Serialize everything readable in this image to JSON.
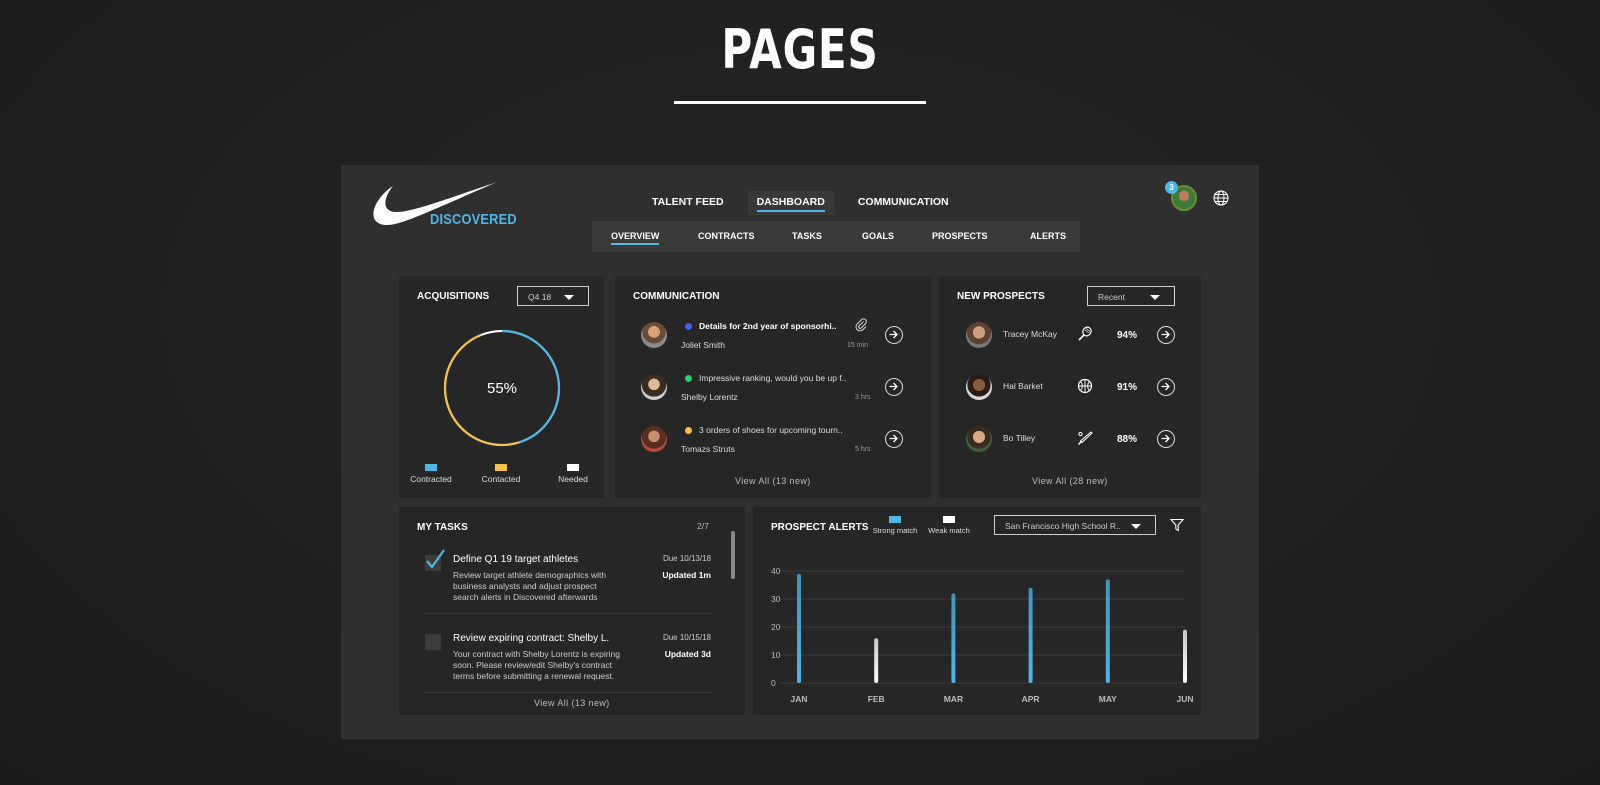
{
  "page_heading": "PAGES",
  "brand": {
    "name": "DISCOVERED"
  },
  "main_nav": [
    {
      "label": "TALENT FEED",
      "active": false
    },
    {
      "label": "DASHBOARD",
      "active": true
    },
    {
      "label": "COMMUNICATION",
      "active": false
    }
  ],
  "sub_nav": [
    {
      "label": "OVERVIEW",
      "active": true
    },
    {
      "label": "CONTRACTS",
      "active": false
    },
    {
      "label": "TASKS",
      "active": false
    },
    {
      "label": "GOALS",
      "active": false
    },
    {
      "label": "PROSPECTS",
      "active": false
    },
    {
      "label": "ALERTS",
      "active": false
    }
  ],
  "header": {
    "notification_count": "3",
    "avatar_icon": "user-avatar",
    "globe_icon": "globe-icon"
  },
  "acquisitions": {
    "title": "ACQUISITIONS",
    "period": "Q4 18",
    "percent_label": "55%",
    "contracted_fraction": 0.55,
    "legend": [
      {
        "label": "Contracted",
        "color": "#4fb6e6"
      },
      {
        "label": "Contacted",
        "color": "#f2c14e"
      },
      {
        "label": "Needed",
        "color": "#ffffff"
      }
    ]
  },
  "communication": {
    "title": "COMMUNICATION",
    "messages": [
      {
        "subject": "Details for 2nd year of sponsorhi..",
        "name": "Joliet Smith",
        "time": "15 min",
        "dot_color": "#4a5fe0",
        "bold": true,
        "attachment": true
      },
      {
        "subject": "Impressive ranking, would you be up f..",
        "name": "Shelby Lorentz",
        "time": "3 hrs",
        "dot_color": "#2ecc71",
        "bold": false,
        "attachment": false
      },
      {
        "subject": "3 orders of shoes for upcoming tourn..",
        "name": "Tomazs Struts",
        "time": "5 hrs",
        "dot_color": "#f2c14e",
        "bold": false,
        "attachment": false
      }
    ],
    "view_all": "View All (13 new)"
  },
  "new_prospects": {
    "title": "NEW PROSPECTS",
    "filter": "Recent",
    "prospects": [
      {
        "name": "Tracey McKay",
        "sport_icon": "tennis-racket-icon",
        "match": "94%"
      },
      {
        "name": "Hal Barket",
        "sport_icon": "basketball-icon",
        "match": "91%"
      },
      {
        "name": "Bo Tilley",
        "sport_icon": "baseball-bat-icon",
        "match": "88%"
      }
    ],
    "view_all": "View All (28 new)"
  },
  "my_tasks": {
    "title": "MY TASKS",
    "count": "2/7",
    "tasks": [
      {
        "title": "Define Q1 19 target athletes",
        "desc": "Review target athlete demographics with business analysts and adjust prospect search alerts in Discovered afterwards",
        "due": "Due 10/13/18",
        "updated": "Updated 1m",
        "done": true
      },
      {
        "title": "Review expiring contract: Shelby L.",
        "desc": "Your contract with Shelby Lorentz is expiring soon. Please review/edit Shelby's contract terms before submitting a renewal request.",
        "due": "Due 10/15/18",
        "updated": "Updated 3d",
        "done": false
      }
    ],
    "view_all": "View All (13 new)"
  },
  "prospect_alerts": {
    "title": "PROSPECT ALERTS",
    "legend": [
      {
        "label": "Strong match",
        "color": "#4fb6e6"
      },
      {
        "label": "Weak match",
        "color": "#ffffff"
      }
    ],
    "school_filter": "San Francisco High School R..",
    "filter_icon": "filter-icon"
  },
  "chart_data": {
    "type": "bar",
    "categories": [
      "JAN",
      "FEB",
      "MAR",
      "APR",
      "MAY",
      "JUN"
    ],
    "values": [
      39,
      16,
      32,
      34,
      37,
      19
    ],
    "match_strength": [
      "strong",
      "weak",
      "strong",
      "strong",
      "strong",
      "weak"
    ],
    "y_ticks": [
      "0",
      "10",
      "20",
      "30",
      "40"
    ],
    "ylim": [
      0,
      40
    ],
    "grid": true
  }
}
